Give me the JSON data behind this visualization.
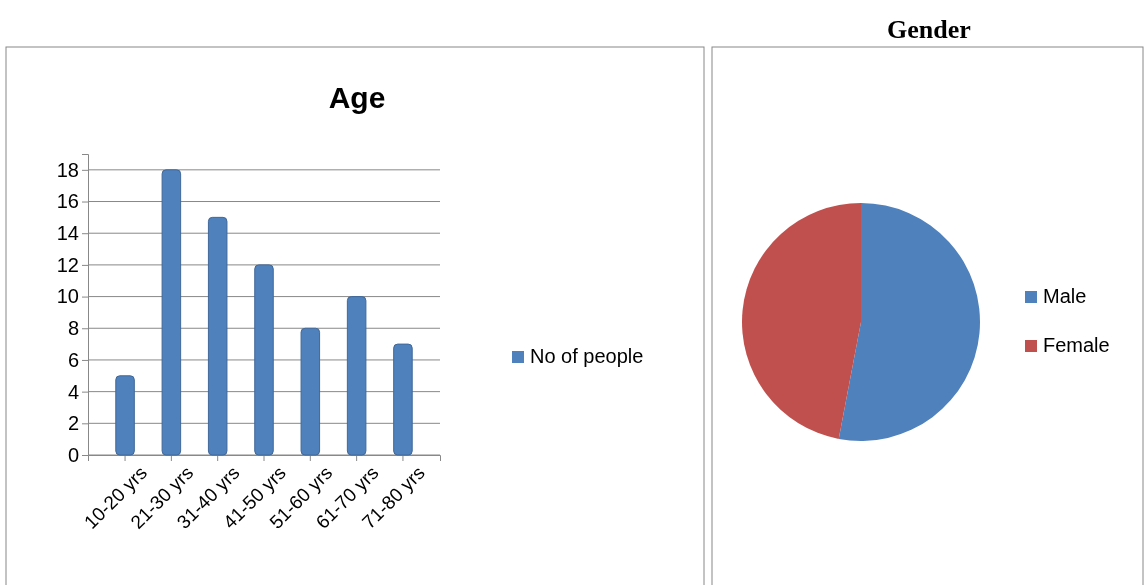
{
  "chart_data": [
    {
      "type": "bar",
      "title": "Age",
      "categories": [
        "10-20  yrs",
        "21-30 yrs",
        "31-40 yrs",
        "41-50 yrs",
        "51-60 yrs",
        "61-70 yrs",
        "71-80 yrs"
      ],
      "series": [
        {
          "name": "No of people",
          "color": "#4f81bd",
          "values": [
            5,
            18,
            15,
            12,
            8,
            10,
            7
          ]
        }
      ],
      "ylim": [
        0,
        19
      ],
      "yticks": [
        0,
        2,
        4,
        6,
        8,
        10,
        12,
        14,
        16,
        18
      ],
      "grid": "y",
      "legend": "right"
    },
    {
      "type": "pie",
      "title": "Gender",
      "categories": [
        "Male",
        "Female"
      ],
      "values": [
        53,
        47
      ],
      "colors": [
        "#4f81bd",
        "#c0504d"
      ],
      "legend": "right"
    }
  ]
}
